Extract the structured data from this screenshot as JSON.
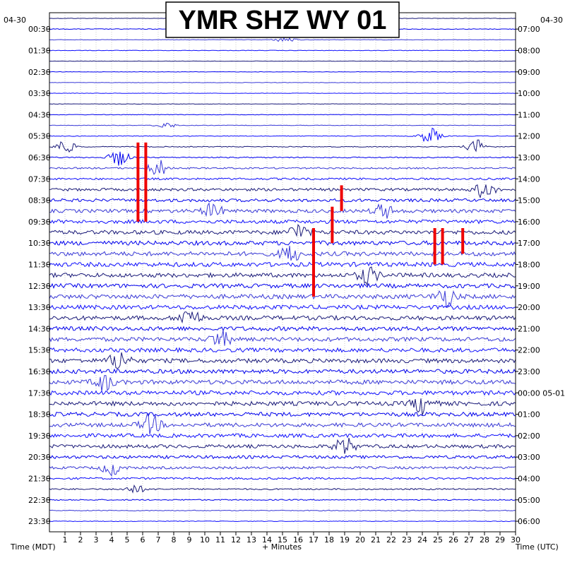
{
  "chart_data": {
    "type": "line",
    "title": "YMR SHZ WY 01",
    "date_left": "04-30",
    "date_right": "04-30",
    "xlabel_left": "Time (MDT)",
    "xlabel_center": "+ Minutes",
    "xlabel_right": "Time (UTC)",
    "x_ticks": [
      "1",
      "2",
      "3",
      "4",
      "5",
      "6",
      "7",
      "8",
      "9",
      "10",
      "11",
      "12",
      "13",
      "14",
      "15",
      "16",
      "17",
      "18",
      "19",
      "20",
      "21",
      "22",
      "23",
      "24",
      "25",
      "26",
      "27",
      "28",
      "29",
      "30"
    ],
    "xlim": [
      0,
      30
    ],
    "rows": 48,
    "minutes_per_row": 30,
    "left_time_labels": [
      "00:30",
      "01:30",
      "02:30",
      "03:30",
      "04:30",
      "05:30",
      "06:30",
      "07:30",
      "08:30",
      "09:30",
      "10:30",
      "11:30",
      "12:30",
      "13:30",
      "14:30",
      "15:30",
      "16:30",
      "17:30",
      "18:30",
      "19:30",
      "20:30",
      "21:30",
      "22:30",
      "23:30"
    ],
    "right_time_labels": [
      "07:00",
      "08:00",
      "09:00",
      "10:00",
      "11:00",
      "12:00",
      "13:00",
      "14:00",
      "15:00",
      "16:00",
      "17:00",
      "18:00",
      "19:00",
      "20:00",
      "21:00",
      "22:00",
      "23:00",
      "00:00 05-01",
      "01:00",
      "02:00",
      "03:00",
      "04:00",
      "05:00",
      "06:00"
    ],
    "trace_colors": [
      "#1a1a7a",
      "#0000ee",
      "#3a3ad8",
      "#1010ff"
    ],
    "clip_color": "#ee0000",
    "grid": true,
    "row_amplitude_profile": [
      0.3,
      0.5,
      0.3,
      0.4,
      0.3,
      0.3,
      0.3,
      0.3,
      0.3,
      0.4,
      0.4,
      0.5,
      0.6,
      0.8,
      1.1,
      1.4,
      1.9,
      2.2,
      2.5,
      2.6,
      2.8,
      3.0,
      3.0,
      3.1,
      3.0,
      3.0,
      3.1,
      3.0,
      3.0,
      3.0,
      2.9,
      2.9,
      3.0,
      3.0,
      3.0,
      3.0,
      3.0,
      2.9,
      2.8,
      2.7,
      2.5,
      2.2,
      1.8,
      1.4,
      1.0,
      0.8,
      0.6,
      0.5
    ],
    "events": [
      {
        "row": 2,
        "minute": 15.2,
        "amp": 4
      },
      {
        "row": 10,
        "minute": 7.5,
        "amp": 4
      },
      {
        "row": 11,
        "minute": 24.5,
        "amp": 12
      },
      {
        "row": 12,
        "minute": 1.0,
        "amp": 10
      },
      {
        "row": 12,
        "minute": 27.5,
        "amp": 10
      },
      {
        "row": 13,
        "minute": 4.5,
        "amp": 12
      },
      {
        "row": 14,
        "minute": 7.0,
        "amp": 12
      },
      {
        "row": 16,
        "minute": 28.0,
        "amp": 12
      },
      {
        "row": 18,
        "minute": 10.5,
        "amp": 10
      },
      {
        "row": 18,
        "minute": 21.5,
        "amp": 10
      },
      {
        "row": 20,
        "minute": 16.0,
        "amp": 12
      },
      {
        "row": 22,
        "minute": 15.5,
        "amp": 12
      },
      {
        "row": 24,
        "minute": 20.5,
        "amp": 12
      },
      {
        "row": 26,
        "minute": 25.5,
        "amp": 14
      },
      {
        "row": 28,
        "minute": 9.0,
        "amp": 14
      },
      {
        "row": 30,
        "minute": 11.0,
        "amp": 12
      },
      {
        "row": 32,
        "minute": 4.5,
        "amp": 14
      },
      {
        "row": 34,
        "minute": 3.5,
        "amp": 12
      },
      {
        "row": 36,
        "minute": 24.0,
        "amp": 14
      },
      {
        "row": 38,
        "minute": 6.5,
        "amp": 14
      },
      {
        "row": 40,
        "minute": 19.0,
        "amp": 12
      },
      {
        "row": 42,
        "minute": 4.0,
        "amp": 10
      },
      {
        "row": 44,
        "minute": 5.5,
        "amp": 6
      }
    ],
    "clipped_events": [
      {
        "row": 12,
        "minute": 5.7,
        "height_rows": 7
      },
      {
        "row": 12,
        "minute": 6.2,
        "height_rows": 7
      },
      {
        "row": 16,
        "minute": 18.8,
        "height_rows": 2
      },
      {
        "row": 18,
        "minute": 18.2,
        "height_rows": 3
      },
      {
        "row": 20,
        "minute": 17.0,
        "height_rows": 6
      },
      {
        "row": 20,
        "minute": 24.8,
        "height_rows": 3
      },
      {
        "row": 20,
        "minute": 25.3,
        "height_rows": 3
      },
      {
        "row": 20,
        "minute": 26.6,
        "height_rows": 2
      }
    ]
  }
}
